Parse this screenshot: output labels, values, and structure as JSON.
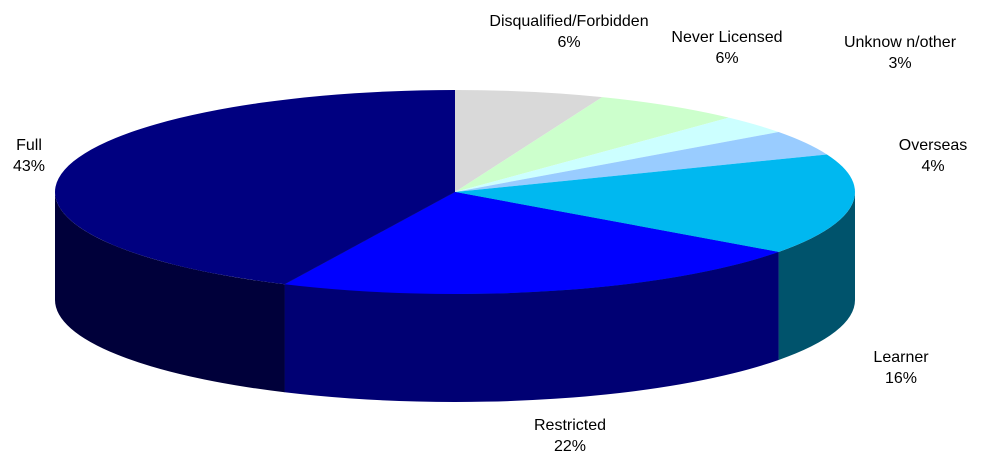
{
  "chart_data": {
    "type": "pie",
    "title": "",
    "slices": [
      {
        "label": "Disqualified/Forbidden",
        "value": 6,
        "value_label": "6%",
        "color": "#d9d9d9"
      },
      {
        "label": "Never Licensed",
        "value": 6,
        "value_label": "6%",
        "color": "#ccffcc"
      },
      {
        "label": "Unknow n/other",
        "value": 3,
        "value_label": "3%",
        "color": "#ccffff"
      },
      {
        "label": "Overseas",
        "value": 4,
        "value_label": "4%",
        "color": "#99ccff"
      },
      {
        "label": "Learner",
        "value": 16,
        "value_label": "16%",
        "color": "#00b8f0"
      },
      {
        "label": "Restricted",
        "value": 22,
        "value_label": "22%",
        "color": "#0000ff"
      },
      {
        "label": "Full",
        "value": 43,
        "value_label": "43%",
        "color": "#000080"
      }
    ],
    "style": "3d-exploded-depth",
    "legend": "none"
  }
}
